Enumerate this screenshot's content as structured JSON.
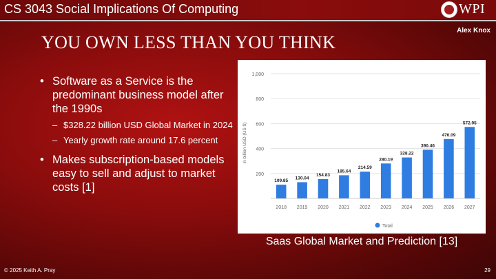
{
  "header": {
    "course_title": "CS 3043 Social Implications Of Computing",
    "logo_text": "WPI",
    "author": "Alex Knox"
  },
  "slide": {
    "title": "YOU OWN LESS THAN YOU THINK",
    "bullets": [
      {
        "text": "Software as a Service is the predominant business model after the 1990s",
        "subbullets": [
          "$328.22 billion USD Global Market in 2024",
          "Yearly growth rate around 17.6 percent"
        ]
      },
      {
        "text": "Makes subscription-based models easy to sell and adjust to market costs [1]",
        "subbullets": []
      }
    ],
    "caption": "Saas Global Market and Prediction [13]"
  },
  "footer": {
    "copyright": "© 2025 Keith A. Pray",
    "page_number": "29"
  },
  "colors": {
    "bar": "#2f7de1",
    "grid": "#e3e3e3",
    "axis_text": "#666666"
  },
  "chart_data": {
    "type": "bar",
    "title": "",
    "xlabel": "",
    "ylabel": "in billion USD (US $)",
    "ylim": [
      0,
      1000
    ],
    "yticks": [
      200,
      400,
      600,
      800,
      1000
    ],
    "ytick_labels": [
      "200",
      "400",
      "600",
      "800",
      "1,000"
    ],
    "categories": [
      "2018",
      "2019",
      "2020",
      "2021",
      "2022",
      "2023",
      "2024",
      "2025",
      "2026",
      "2027"
    ],
    "series": [
      {
        "name": "Total",
        "values": [
          109.85,
          130.04,
          154.83,
          185.64,
          214.59,
          280.19,
          328.22,
          390.46,
          476.09,
          572.95
        ],
        "labels": [
          "109.85",
          "130.04",
          "154.83",
          "185.64",
          "214.59",
          "280.19",
          "328.22",
          "390.46",
          "476.09",
          "572.95"
        ]
      }
    ],
    "legend": "bottom-center"
  }
}
